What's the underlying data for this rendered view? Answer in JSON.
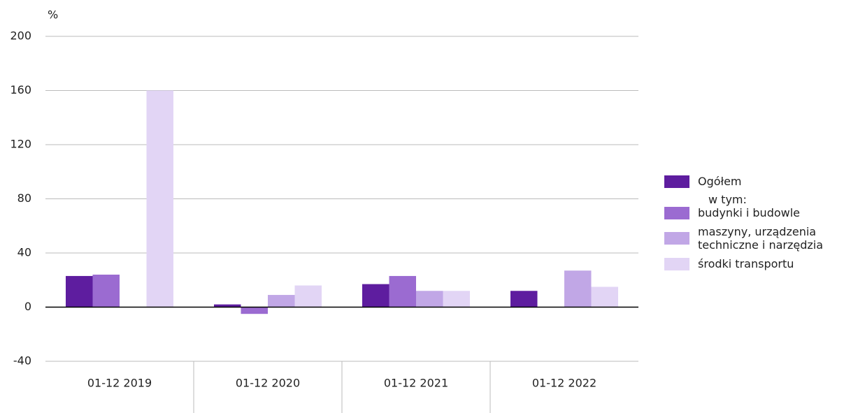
{
  "chart_data": {
    "type": "bar",
    "y_label": "%",
    "categories": [
      "01-12 2019",
      "01-12 2020",
      "01-12 2021",
      "01-12 2022"
    ],
    "series": [
      {
        "name": "Ogółem",
        "color": "#5e1d9f",
        "values": [
          23,
          2,
          17,
          12
        ]
      },
      {
        "name": "budynki i budowle",
        "color": "#9b6bd1",
        "values": [
          24,
          -5,
          23,
          null
        ]
      },
      {
        "name": "maszyny, urządzenia techniczne i narzędzia",
        "color": "#c1a7e6",
        "values": [
          null,
          9,
          12,
          27
        ]
      },
      {
        "name": "środki transportu",
        "color": "#e2d5f5",
        "values": [
          160,
          16,
          12,
          15
        ]
      }
    ],
    "legend_note": "w tym:",
    "ylim": [
      -40,
      200
    ],
    "yticks": [
      -40,
      0,
      40,
      80,
      120,
      160,
      200
    ],
    "grid": true
  }
}
